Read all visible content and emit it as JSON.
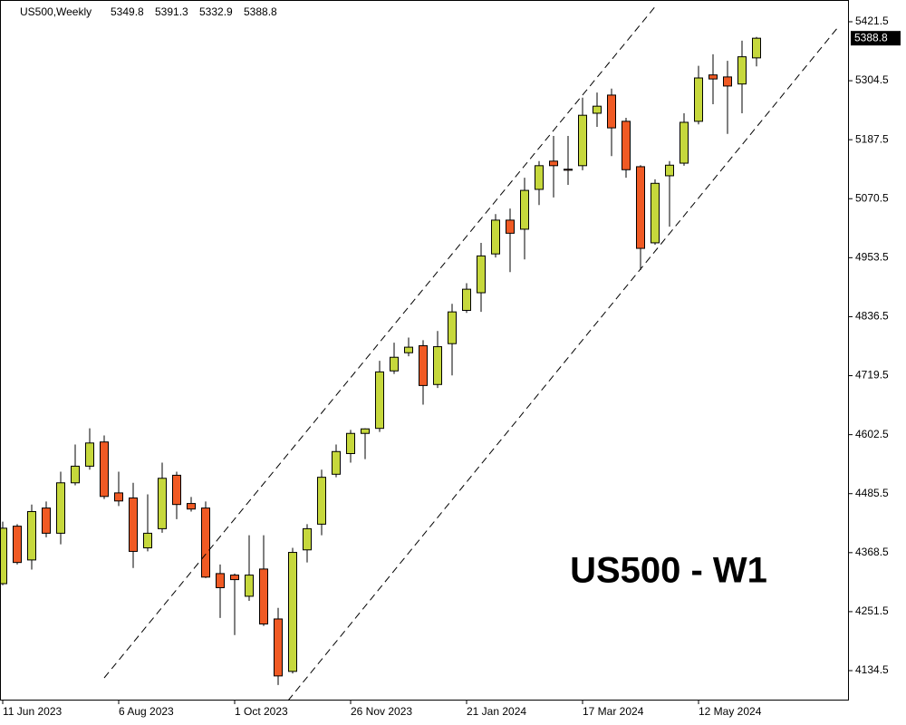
{
  "chart_data": {
    "type": "candlestick",
    "title": "US500,Weekly",
    "annotation": "US500 - W1",
    "categories": [
      "11 Jun 2023",
      null,
      null,
      null,
      null,
      null,
      null,
      null,
      "6 Aug 2023",
      null,
      null,
      null,
      null,
      null,
      null,
      null,
      "1 Oct 2023",
      null,
      null,
      null,
      null,
      null,
      null,
      null,
      "26 Nov 2023",
      null,
      null,
      null,
      null,
      null,
      null,
      null,
      "21 Jan 2024",
      null,
      null,
      null,
      null,
      null,
      null,
      null,
      "17 Mar 2024",
      null,
      null,
      null,
      null,
      null,
      null,
      null,
      "12 May 2024",
      null,
      null,
      null,
      null
    ],
    "open": [
      4307,
      4421,
      4354,
      4457,
      4407,
      4507,
      4540,
      4588,
      4487,
      4477,
      4378,
      4416,
      4522,
      4466,
      4457,
      4327,
      4324,
      4282,
      4336,
      4237,
      4133,
      4374,
      4425,
      4524,
      4565,
      4605,
      4615,
      4729,
      4765,
      4779,
      4702,
      4783,
      4849,
      4884,
      4961,
      5028,
      5010,
      5089,
      5145,
      5129,
      5136,
      5240,
      5276,
      5224,
      5134,
      4983,
      5116,
      5141,
      5224,
      5316,
      5312,
      5298,
      5349.8
    ],
    "high": [
      4430,
      4425,
      4464,
      4470,
      4529,
      4583,
      4615,
      4601,
      4529,
      4507,
      4484,
      4547,
      4529,
      4479,
      4470,
      4345,
      4327,
      4403,
      4403,
      4259,
      4378,
      4425,
      4533,
      4583,
      4612,
      4615,
      4749,
      4785,
      4795,
      4790,
      4808,
      4862,
      4903,
      4983,
      5040,
      5051,
      5112,
      5145,
      5195,
      5195,
      5271,
      5281,
      5289,
      5231,
      5137,
      5109,
      5145,
      5240,
      5334,
      5357,
      5344,
      5384,
      5391.3
    ],
    "low": [
      4304,
      4345,
      4335,
      4399,
      4385,
      4502,
      4533,
      4475,
      4461,
      4338,
      4371,
      4408,
      4435,
      4450,
      4318,
      4239,
      4205,
      4273,
      4223,
      4106,
      4129,
      4349,
      4403,
      4518,
      4547,
      4554,
      4608,
      4723,
      4758,
      4662,
      4695,
      4720,
      4844,
      4846,
      4954,
      4925,
      4950,
      5058,
      5073,
      5098,
      5127,
      5213,
      5155,
      5112,
      4929,
      4979,
      5015,
      5136,
      5218,
      5258,
      5199,
      5240,
      5332.9
    ],
    "close": [
      4417,
      4349,
      4450,
      4407,
      4507,
      4540,
      4586,
      4480,
      4471,
      4371,
      4407,
      4516,
      4464,
      4455,
      4320,
      4299,
      4315,
      4324,
      4227,
      4124,
      4369,
      4416,
      4518,
      4569,
      4605,
      4614,
      4727,
      4756,
      4776,
      4700,
      4777,
      4846,
      4891,
      4957,
      5028,
      5002,
      5087,
      5136,
      5136,
      5127,
      5236,
      5254,
      5211,
      5128,
      4972,
      5101,
      5137,
      5222,
      5310,
      5308,
      5294,
      5352,
      5388.8
    ],
    "up_color": "#c6d83c",
    "down_color": "#f05a24",
    "ylim": [
      4075.2,
      5464.6
    ],
    "yticks": [
      4134.5,
      4251.5,
      4368.5,
      4485.5,
      4602.5,
      4719.5,
      4836.5,
      4953.5,
      5070.5,
      5187.5,
      5304.5,
      5421.5
    ]
  }
}
